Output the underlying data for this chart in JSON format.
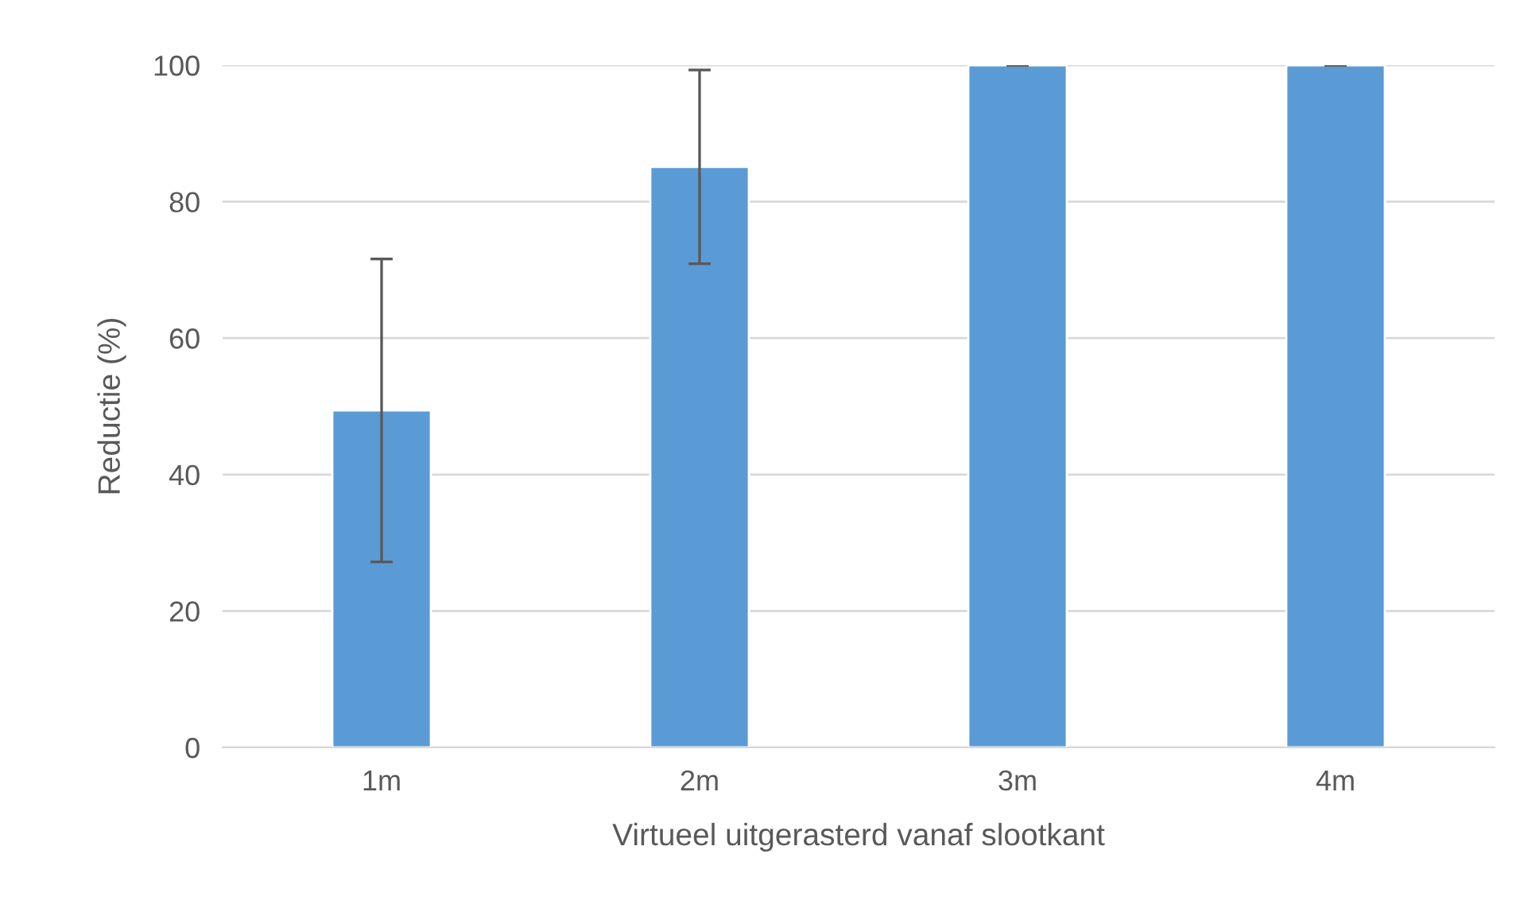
{
  "chart_data": {
    "type": "bar",
    "xlabel": "Virtueel uitgerasterd vanaf slootkant",
    "ylabel": "Reductie (%)",
    "categories": [
      "1m",
      "2m",
      "3m",
      "4m"
    ],
    "values": [
      49.4,
      85.1,
      100,
      100
    ],
    "errors": [
      22.2,
      14.2,
      0,
      0
    ],
    "color": "#5b9bd5",
    "ylim": [
      0,
      100
    ],
    "yticks": [
      0,
      20,
      40,
      60,
      80,
      100
    ],
    "grid": "y"
  }
}
